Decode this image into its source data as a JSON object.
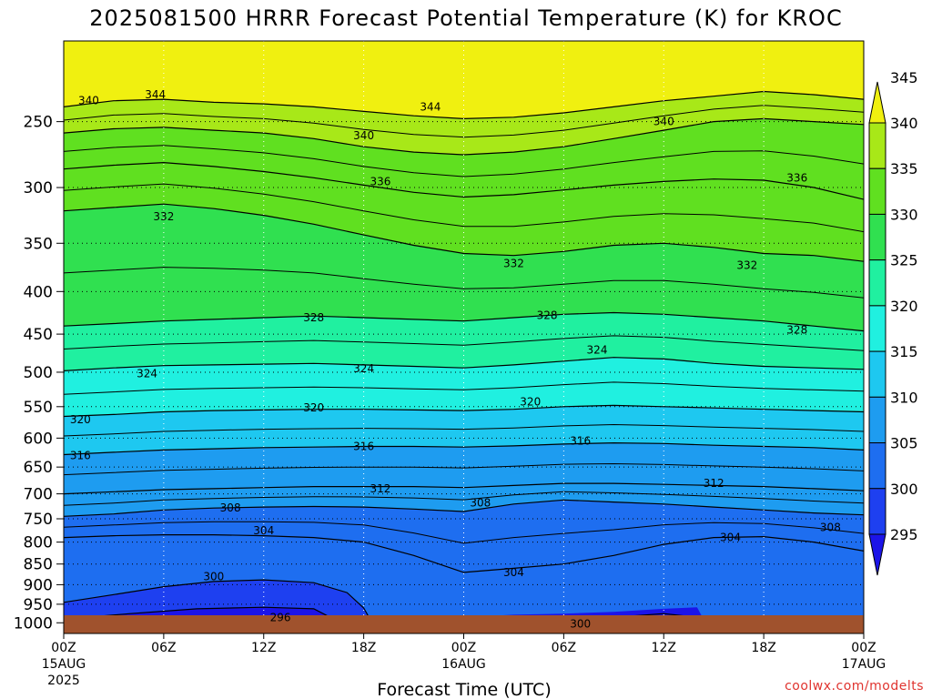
{
  "chart_data": {
    "type": "heatmap",
    "title": "2025081500 HRRR Forecast Potential Temperature (K) for KROC",
    "xlabel": "Forecast Time (UTC)",
    "ylabel": "",
    "credit": "coolwx.com/modelts",
    "x_ticks": [
      {
        "hour": 0,
        "label": "00Z",
        "sub1": "15AUG",
        "sub2": "2025"
      },
      {
        "hour": 6,
        "label": "06Z",
        "sub1": "",
        "sub2": ""
      },
      {
        "hour": 12,
        "label": "12Z",
        "sub1": "",
        "sub2": ""
      },
      {
        "hour": 18,
        "label": "18Z",
        "sub1": "",
        "sub2": ""
      },
      {
        "hour": 24,
        "label": "00Z",
        "sub1": "16AUG",
        "sub2": ""
      },
      {
        "hour": 30,
        "label": "06Z",
        "sub1": "",
        "sub2": ""
      },
      {
        "hour": 36,
        "label": "12Z",
        "sub1": "",
        "sub2": ""
      },
      {
        "hour": 42,
        "label": "18Z",
        "sub1": "",
        "sub2": ""
      },
      {
        "hour": 48,
        "label": "00Z",
        "sub1": "17AUG",
        "sub2": ""
      }
    ],
    "x_range": [
      0,
      48
    ],
    "y_ticks": [
      "250",
      "300",
      "350",
      "400",
      "450",
      "500",
      "550",
      "600",
      "650",
      "700",
      "750",
      "800",
      "850",
      "900",
      "950",
      "1000"
    ],
    "y_axis": "pressure (hPa), log scale, top 200 to bottom 1030",
    "grid": true,
    "colorbar": {
      "levels": [
        "295",
        "300",
        "305",
        "310",
        "315",
        "320",
        "325",
        "330",
        "335",
        "340",
        "345"
      ],
      "colors": [
        "#1c14e8",
        "#1e40f0",
        "#1e6ef0",
        "#1e9cf0",
        "#1ec8f0",
        "#20f0e0",
        "#20f0a0",
        "#30e050",
        "#60e020",
        "#a8e818",
        "#f0f010"
      ]
    },
    "surface_color": "#a0522d",
    "isentropes": [
      {
        "theta": "344",
        "points": [
          [
            0,
            240
          ],
          [
            3,
            236
          ],
          [
            6,
            235
          ],
          [
            9,
            237
          ],
          [
            12,
            238
          ],
          [
            15,
            240
          ],
          [
            18,
            243
          ],
          [
            21,
            246
          ],
          [
            24,
            248
          ],
          [
            27,
            247
          ],
          [
            30,
            244
          ],
          [
            33,
            240
          ],
          [
            36,
            236
          ],
          [
            39,
            233
          ],
          [
            42,
            230
          ],
          [
            45,
            232
          ],
          [
            48,
            235
          ]
        ],
        "label_at": [
          [
            5.5,
            232
          ],
          [
            22,
            240
          ]
        ]
      },
      {
        "theta": "340",
        "points": [
          [
            0,
            258
          ],
          [
            3,
            255
          ],
          [
            6,
            254
          ],
          [
            9,
            256
          ],
          [
            12,
            258
          ],
          [
            15,
            262
          ],
          [
            18,
            268
          ],
          [
            21,
            272
          ],
          [
            24,
            274
          ],
          [
            27,
            272
          ],
          [
            30,
            268
          ],
          [
            33,
            262
          ],
          [
            36,
            256
          ],
          [
            39,
            250
          ],
          [
            42,
            248
          ],
          [
            45,
            250
          ],
          [
            48,
            252
          ]
        ],
        "label_at": [
          [
            1.5,
            236
          ],
          [
            18,
            260
          ],
          [
            36,
            250
          ]
        ]
      },
      {
        "theta": "336",
        "points": [
          [
            0,
            285
          ],
          [
            3,
            282
          ],
          [
            6,
            280
          ],
          [
            9,
            283
          ],
          [
            12,
            287
          ],
          [
            15,
            292
          ],
          [
            18,
            298
          ],
          [
            21,
            304
          ],
          [
            24,
            308
          ],
          [
            27,
            306
          ],
          [
            30,
            302
          ],
          [
            33,
            298
          ],
          [
            36,
            295
          ],
          [
            39,
            293
          ],
          [
            42,
            294
          ],
          [
            45,
            300
          ],
          [
            48,
            310
          ]
        ],
        "label_at": [
          [
            19,
            295
          ],
          [
            44,
            292
          ]
        ]
      },
      {
        "theta": "332",
        "points": [
          [
            0,
            320
          ],
          [
            3,
            317
          ],
          [
            6,
            314
          ],
          [
            9,
            318
          ],
          [
            12,
            324
          ],
          [
            15,
            332
          ],
          [
            18,
            342
          ],
          [
            21,
            352
          ],
          [
            24,
            360
          ],
          [
            27,
            362
          ],
          [
            30,
            358
          ],
          [
            33,
            352
          ],
          [
            36,
            350
          ],
          [
            39,
            354
          ],
          [
            42,
            360
          ],
          [
            45,
            362
          ],
          [
            48,
            368
          ]
        ],
        "label_at": [
          [
            6,
            325
          ],
          [
            27,
            370
          ],
          [
            41,
            372
          ]
        ]
      },
      {
        "theta": "328",
        "points": [
          [
            0,
            440
          ],
          [
            3,
            437
          ],
          [
            6,
            434
          ],
          [
            9,
            432
          ],
          [
            12,
            430
          ],
          [
            15,
            428
          ],
          [
            18,
            430
          ],
          [
            21,
            432
          ],
          [
            24,
            434
          ],
          [
            27,
            430
          ],
          [
            30,
            426
          ],
          [
            33,
            424
          ],
          [
            36,
            426
          ],
          [
            39,
            430
          ],
          [
            42,
            434
          ],
          [
            45,
            440
          ],
          [
            48,
            446
          ]
        ],
        "label_at": [
          [
            15,
            430
          ],
          [
            29,
            427
          ],
          [
            44,
            445
          ]
        ]
      },
      {
        "theta": "324",
        "points": [
          [
            0,
            498
          ],
          [
            3,
            494
          ],
          [
            6,
            491
          ],
          [
            9,
            490
          ],
          [
            12,
            489
          ],
          [
            15,
            488
          ],
          [
            18,
            490
          ],
          [
            21,
            492
          ],
          [
            24,
            494
          ],
          [
            27,
            490
          ],
          [
            30,
            485
          ],
          [
            33,
            480
          ],
          [
            36,
            482
          ],
          [
            39,
            488
          ],
          [
            42,
            492
          ],
          [
            45,
            494
          ],
          [
            48,
            496
          ]
        ],
        "label_at": [
          [
            5,
            502
          ],
          [
            18,
            495
          ],
          [
            32,
            470
          ]
        ]
      },
      {
        "theta": "320",
        "points": [
          [
            0,
            565
          ],
          [
            3,
            562
          ],
          [
            6,
            558
          ],
          [
            9,
            556
          ],
          [
            12,
            555
          ],
          [
            15,
            554
          ],
          [
            18,
            554
          ],
          [
            21,
            555
          ],
          [
            24,
            556
          ],
          [
            27,
            554
          ],
          [
            30,
            550
          ],
          [
            33,
            548
          ],
          [
            36,
            550
          ],
          [
            39,
            552
          ],
          [
            42,
            554
          ],
          [
            45,
            556
          ],
          [
            48,
            558
          ]
        ],
        "label_at": [
          [
            1,
            570
          ],
          [
            15,
            552
          ],
          [
            28,
            543
          ]
        ]
      },
      {
        "theta": "316",
        "points": [
          [
            0,
            628
          ],
          [
            3,
            624
          ],
          [
            6,
            620
          ],
          [
            9,
            618
          ],
          [
            12,
            616
          ],
          [
            15,
            615
          ],
          [
            18,
            614
          ],
          [
            21,
            614
          ],
          [
            24,
            615
          ],
          [
            27,
            613
          ],
          [
            30,
            610
          ],
          [
            33,
            608
          ],
          [
            36,
            609
          ],
          [
            39,
            612
          ],
          [
            42,
            614
          ],
          [
            45,
            616
          ],
          [
            48,
            620
          ]
        ],
        "label_at": [
          [
            1,
            630
          ],
          [
            18,
            614
          ],
          [
            31,
            605
          ]
        ]
      },
      {
        "theta": "312",
        "points": [
          [
            0,
            700
          ],
          [
            3,
            696
          ],
          [
            6,
            692
          ],
          [
            9,
            690
          ],
          [
            12,
            688
          ],
          [
            15,
            686
          ],
          [
            18,
            686
          ],
          [
            21,
            686
          ],
          [
            24,
            688
          ],
          [
            27,
            684
          ],
          [
            30,
            680
          ],
          [
            33,
            680
          ],
          [
            36,
            682
          ],
          [
            39,
            684
          ],
          [
            42,
            686
          ],
          [
            45,
            690
          ],
          [
            48,
            694
          ]
        ],
        "label_at": [
          [
            19,
            690
          ],
          [
            39,
            680
          ]
        ]
      },
      {
        "theta": "308",
        "points": [
          [
            0,
            745
          ],
          [
            3,
            740
          ],
          [
            6,
            732
          ],
          [
            9,
            728
          ],
          [
            12,
            726
          ],
          [
            15,
            725
          ],
          [
            18,
            726
          ],
          [
            21,
            730
          ],
          [
            24,
            735
          ],
          [
            27,
            720
          ],
          [
            30,
            712
          ],
          [
            33,
            716
          ],
          [
            36,
            720
          ],
          [
            39,
            726
          ],
          [
            42,
            732
          ],
          [
            45,
            738
          ],
          [
            48,
            742
          ]
        ],
        "label_at": [
          [
            10,
            728
          ],
          [
            25,
            718
          ],
          [
            46,
            768
          ]
        ]
      },
      {
        "theta": "304",
        "points": [
          [
            0,
            790
          ],
          [
            3,
            786
          ],
          [
            6,
            784
          ],
          [
            9,
            784
          ],
          [
            12,
            786
          ],
          [
            15,
            790
          ],
          [
            18,
            800
          ],
          [
            21,
            830
          ],
          [
            24,
            870
          ],
          [
            27,
            860
          ],
          [
            30,
            850
          ],
          [
            33,
            830
          ],
          [
            36,
            805
          ],
          [
            39,
            790
          ],
          [
            42,
            788
          ],
          [
            45,
            800
          ],
          [
            48,
            820
          ]
        ],
        "label_at": [
          [
            12,
            775
          ],
          [
            27,
            870
          ],
          [
            40,
            790
          ]
        ]
      },
      {
        "theta": "300",
        "points": [
          [
            0,
            945
          ],
          [
            3,
            925
          ],
          [
            6,
            905
          ],
          [
            9,
            892
          ],
          [
            12,
            888
          ],
          [
            15,
            895
          ],
          [
            17,
            920
          ],
          [
            18,
            960
          ],
          [
            18.5,
            1000
          ],
          [
            24,
            1010
          ],
          [
            27,
            1005
          ],
          [
            30,
            996
          ],
          [
            33,
            985
          ],
          [
            36,
            975
          ],
          [
            39,
            990
          ],
          [
            40.5,
            1000
          ]
        ],
        "label_at": [
          [
            9,
            880
          ],
          [
            31,
            1003
          ]
        ]
      },
      {
        "theta": "296",
        "points": [
          [
            0,
            990
          ],
          [
            4,
            975
          ],
          [
            8,
            962
          ],
          [
            12,
            958
          ],
          [
            15,
            962
          ],
          [
            16,
            985
          ],
          [
            16.5,
            1000
          ]
        ],
        "label_at": [
          [
            13,
            985
          ]
        ]
      }
    ],
    "cold_pools": [
      {
        "theta": "<300",
        "region": "low-level 0Z-16Z and 25Z-40Z near surface"
      }
    ]
  }
}
